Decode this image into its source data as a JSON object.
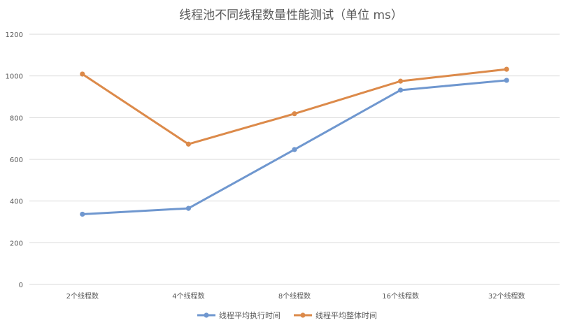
{
  "chart_data": {
    "type": "line",
    "title": "线程池不同线程数量性能测试（单位 ms）",
    "categories": [
      "2个线程数",
      "4个线程数",
      "8个线程数",
      "16个线程数",
      "32个线程数"
    ],
    "ylim": [
      0,
      1200
    ],
    "yticks": [
      0,
      200,
      400,
      600,
      800,
      1000,
      1200
    ],
    "grid": true,
    "legend_position": "bottom",
    "series": [
      {
        "name": "线程平均执行时间",
        "color": "#6f97cf",
        "values": [
          337,
          365,
          647,
          932,
          979
        ]
      },
      {
        "name": "线程平均整体时间",
        "color": "#dc8a4a",
        "values": [
          1009,
          673,
          819,
          975,
          1032
        ]
      }
    ]
  }
}
